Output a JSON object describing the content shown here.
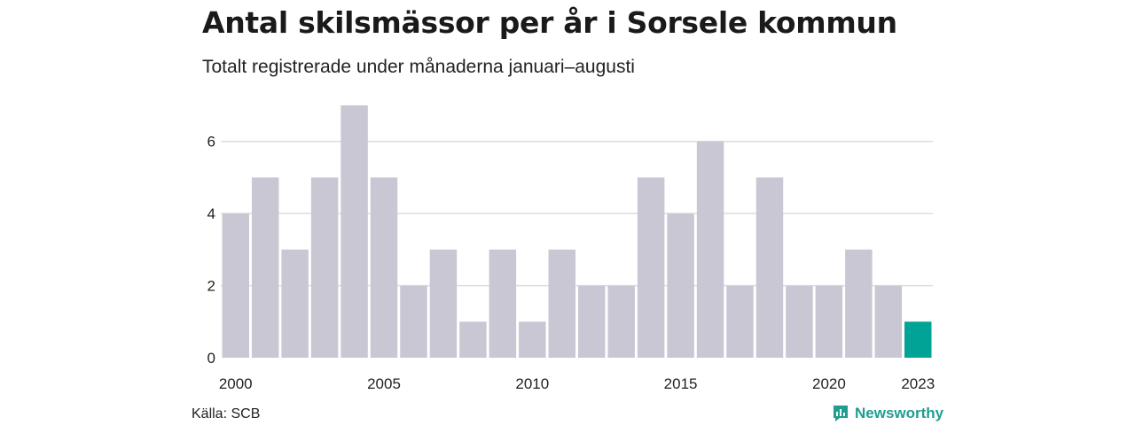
{
  "header": {
    "title": "Antal skilsmässor per år i Sorsele kommun",
    "subtitle": "Totalt registrerade under månaderna januari–augusti"
  },
  "footer": {
    "source": "Källa: SCB",
    "brand": "Newsworthy"
  },
  "colors": {
    "bar": "#c8c7d3",
    "highlight": "#00a396",
    "grid": "#dddddd",
    "brand": "#1f9e8f"
  },
  "icons": {
    "brand_logo": "newsworthy-logo-icon"
  },
  "chart_data": {
    "type": "bar",
    "categories": [
      "2000",
      "2001",
      "2002",
      "2003",
      "2004",
      "2005",
      "2006",
      "2007",
      "2008",
      "2009",
      "2010",
      "2011",
      "2012",
      "2013",
      "2014",
      "2015",
      "2016",
      "2017",
      "2018",
      "2019",
      "2020",
      "2021",
      "2022",
      "2023"
    ],
    "values": [
      4,
      5,
      3,
      5,
      7,
      5,
      2,
      3,
      1,
      3,
      1,
      3,
      2,
      2,
      5,
      4,
      6,
      2,
      5,
      2,
      2,
      3,
      2,
      1
    ],
    "highlight_category": "2023",
    "x_tick_labels": [
      "2000",
      "2005",
      "2010",
      "2015",
      "2020",
      "2023"
    ],
    "y_ticks": [
      0,
      2,
      4,
      6
    ],
    "ylim": [
      0,
      7
    ],
    "grid": true
  }
}
